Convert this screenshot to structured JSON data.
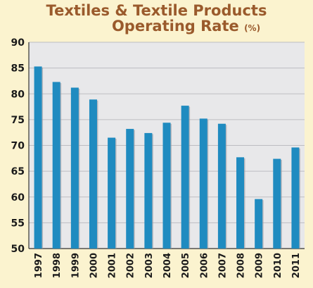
{
  "chart_data": {
    "type": "bar",
    "title_line1": "Textiles & Textile Products",
    "title_line2": "Operating Rate",
    "title_unit": "(%)",
    "categories": [
      "1997",
      "1998",
      "1999",
      "2000",
      "2001",
      "2002",
      "2003",
      "2004",
      "2005",
      "2006",
      "2007",
      "2008",
      "2009",
      "2010",
      "2011"
    ],
    "values": [
      85.3,
      82.3,
      81.2,
      78.9,
      71.5,
      73.2,
      72.4,
      74.4,
      77.7,
      75.2,
      74.2,
      67.7,
      59.6,
      67.4,
      69.6
    ],
    "ylim": [
      50,
      90
    ],
    "yticks": [
      50,
      55,
      60,
      65,
      70,
      75,
      80,
      85,
      90
    ],
    "grid": "horizontal",
    "colors": {
      "background": "#fbf3cf",
      "plot_area": "#e8e8ea",
      "bar": "#1f8bc0",
      "title": "#9a5a2c"
    }
  }
}
